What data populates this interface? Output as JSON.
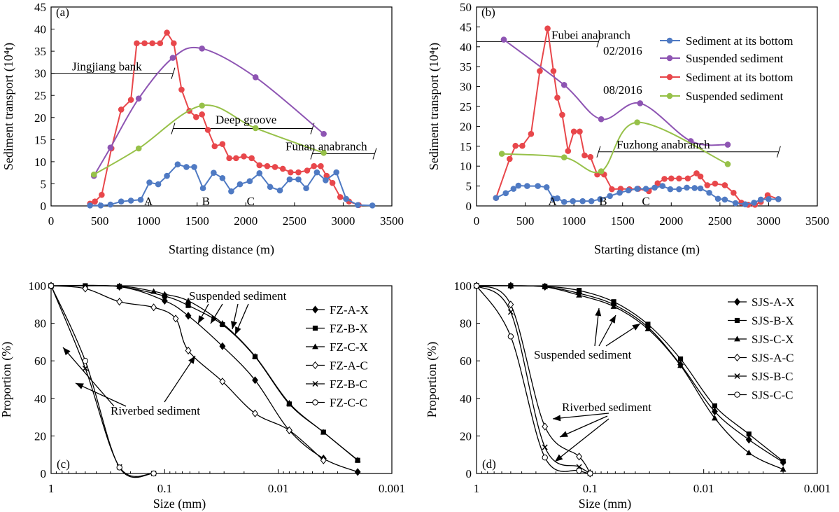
{
  "chart_data": [
    {
      "panel": "(a)",
      "type": "line",
      "xlabel": "Starting distance (m)",
      "ylabel": "Sediment transport (10⁴t)",
      "xlim": [
        0,
        3500
      ],
      "ylim": [
        0,
        45
      ],
      "xticks": [
        0,
        500,
        1000,
        1500,
        2000,
        2500,
        3000,
        3500
      ],
      "yticks": [
        0,
        5,
        10,
        15,
        20,
        25,
        30,
        35,
        40,
        45
      ],
      "series": [
        {
          "color": "#e8474b",
          "smooth": false,
          "x": [
            400,
            450,
            520,
            620,
            720,
            820,
            880,
            960,
            1040,
            1120,
            1190,
            1260,
            1340,
            1420,
            1490,
            1550,
            1610,
            1680,
            1760,
            1830,
            1900,
            1980,
            2060,
            2140,
            2220,
            2300,
            2380,
            2460,
            2540,
            2630,
            2700,
            2770,
            2830,
            2890,
            2970,
            3060,
            3160
          ],
          "y": [
            0.5,
            1,
            2.5,
            13,
            21.8,
            24,
            36.8,
            36.8,
            36.8,
            36.8,
            39.2,
            36.8,
            26.3,
            21.5,
            20.1,
            20.7,
            17.2,
            13.5,
            14,
            10.8,
            10.8,
            11.2,
            10.8,
            9.2,
            9,
            8.8,
            8.4,
            7.6,
            7.6,
            8,
            9,
            9,
            6.8,
            5.2,
            2,
            1,
            0.2
          ]
        },
        {
          "color": "#4f7ac3",
          "smooth": false,
          "x": [
            400,
            510,
            610,
            720,
            820,
            920,
            1010,
            1100,
            1190,
            1300,
            1390,
            1470,
            1560,
            1670,
            1760,
            1850,
            1940,
            2040,
            2140,
            2250,
            2350,
            2450,
            2540,
            2620,
            2730,
            2820,
            2930,
            3030,
            3150,
            3300
          ],
          "y": [
            0.1,
            0.1,
            0.3,
            1,
            1.2,
            1.4,
            5.3,
            4.9,
            6.8,
            9.4,
            8.8,
            8.8,
            4,
            7.5,
            6.3,
            3.3,
            4.9,
            5.6,
            7.4,
            4.3,
            3.5,
            6,
            6,
            4,
            7.6,
            5.8,
            7.6,
            1.6,
            0.2,
            0.1
          ]
        },
        {
          "color": "#8e55b3",
          "smooth": true,
          "x": [
            440,
            610,
            900,
            1250,
            1550,
            2100,
            2800
          ],
          "y": [
            6.8,
            13.2,
            24.3,
            33.5,
            35.6,
            29.1,
            16.3
          ]
        },
        {
          "color": "#97c149",
          "smooth": true,
          "x": [
            440,
            900,
            1550,
            2100,
            2800
          ],
          "y": [
            7.1,
            13,
            22.7,
            17.6,
            12
          ]
        }
      ],
      "annotations": [
        {
          "text": "Jingjiang bank",
          "x1": 0,
          "x2": 1250,
          "y": 30
        },
        {
          "text": "Deep groove",
          "x1": 1250,
          "x2": 2680,
          "y": 17.5
        },
        {
          "text": "Funan anabranch",
          "x1": 2680,
          "x2": 3320,
          "y": 11.8
        }
      ],
      "points": [
        {
          "text": "A",
          "x": 1000
        },
        {
          "text": "B",
          "x": 1590
        },
        {
          "text": "C",
          "x": 2050
        }
      ]
    },
    {
      "panel": "(b)",
      "type": "line",
      "xlabel": "Starting distance (m)",
      "ylabel": "Sediment transport (10⁴t)",
      "xlim": [
        0,
        3500
      ],
      "ylim": [
        0,
        50
      ],
      "xticks": [
        0,
        500,
        1000,
        1500,
        2000,
        2500,
        3000,
        3500
      ],
      "yticks": [
        0,
        5,
        10,
        15,
        20,
        25,
        30,
        35,
        40,
        45,
        50
      ],
      "series": [
        {
          "color": "#e8474b",
          "smooth": false,
          "x": [
            200,
            340,
            400,
            470,
            560,
            650,
            730,
            790,
            830,
            880,
            940,
            1000,
            1060,
            1110,
            1170,
            1240,
            1310,
            1390,
            1480,
            1570,
            1660,
            1770,
            1860,
            1930,
            2000,
            2080,
            2170,
            2260,
            2300,
            2370,
            2450,
            2550,
            2640,
            2720,
            2790,
            2860,
            2920,
            2990,
            3100
          ],
          "y": [
            2,
            11.8,
            15.1,
            15.1,
            18.1,
            33.9,
            44.6,
            33.9,
            27.2,
            22.9,
            13.8,
            18.7,
            18.7,
            12.7,
            12.3,
            7.9,
            7.9,
            4.2,
            4.3,
            4.2,
            4.3,
            3.7,
            5.7,
            6.8,
            6.9,
            6.9,
            6.9,
            8.2,
            7.4,
            5.2,
            5.6,
            5.2,
            3.3,
            0.8,
            0.3,
            0.3,
            1,
            2.7,
            1.7
          ]
        },
        {
          "color": "#4f7ac3",
          "smooth": false,
          "x": [
            200,
            300,
            380,
            430,
            520,
            630,
            720,
            790,
            830,
            900,
            990,
            1090,
            1180,
            1270,
            1370,
            1470,
            1560,
            1650,
            1740,
            1830,
            1910,
            1990,
            2080,
            2160,
            2240,
            2300,
            2390,
            2480,
            2550,
            2660,
            2760,
            2850,
            2920,
            3000,
            3100
          ],
          "y": [
            2,
            3.2,
            4.3,
            5.1,
            5,
            5,
            4.7,
            1.8,
            1.9,
            1,
            1.2,
            1.2,
            1.2,
            1.7,
            2.5,
            3.3,
            3.9,
            4.3,
            4.3,
            4.6,
            5,
            4.2,
            4.2,
            4.6,
            4.5,
            4.4,
            3.3,
            1.8,
            1.6,
            0.7,
            0.4,
            0.8,
            1.6,
            1.7,
            1.7
          ]
        },
        {
          "color": "#8e55b3",
          "smooth": true,
          "x": [
            280,
            900,
            1280,
            1680,
            2200,
            2580
          ],
          "y": [
            41.8,
            30.4,
            21.8,
            25.8,
            16.3,
            15.4
          ]
        },
        {
          "color": "#97c149",
          "smooth": true,
          "x": [
            260,
            900,
            1280,
            1650,
            2580
          ],
          "y": [
            13.1,
            12.2,
            8.7,
            21,
            10.5
          ]
        }
      ],
      "annotations": [
        {
          "text": "Fubei anabranch",
          "x1": 0,
          "x2": 1250,
          "y": 41.3
        },
        {
          "text": "Fuzhong anabranch",
          "x1": 1250,
          "x2": 3100,
          "y": 13.6
        }
      ],
      "points": [
        {
          "text": "A",
          "x": 780
        },
        {
          "text": "B",
          "x": 1300
        },
        {
          "text": "C",
          "x": 1740
        }
      ],
      "legend_groups": [
        "02/2016",
        "08/2016"
      ],
      "legend": [
        {
          "label": "Sediment at its bottom",
          "color": "#4f7ac3"
        },
        {
          "label": "Suspended sediment",
          "color": "#8e55b3"
        },
        {
          "label": "Sediment at its bottom",
          "color": "#e8474b"
        },
        {
          "label": "Suspended sediment",
          "color": "#97c149"
        }
      ]
    },
    {
      "panel": "(c)",
      "type": "line",
      "xscale": "log-reversed",
      "xlabel": "Size (mm)",
      "ylabel": "Proportion (%)",
      "xlim": [
        1,
        0.001
      ],
      "ylim": [
        0,
        100
      ],
      "xticks": [
        "1",
        "0.1",
        "0.01",
        "0.001"
      ],
      "yticks": [
        0,
        20,
        40,
        60,
        80,
        100
      ],
      "series": [
        {
          "name": "FZ-A-X",
          "marker": "diamond-filled",
          "x": [
            1,
            0.25,
            0.1,
            0.062,
            0.031,
            0.016,
            0.008,
            0.004,
            0.002
          ],
          "y": [
            100,
            99.5,
            92,
            84,
            67.8,
            49.7,
            23,
            8,
            0.8
          ]
        },
        {
          "name": "FZ-B-X",
          "marker": "square-filled",
          "x": [
            1,
            0.5,
            0.25,
            0.1,
            0.062,
            0.031,
            0.016,
            0.008,
            0.004,
            0.002
          ],
          "y": [
            100,
            100,
            99.6,
            94.5,
            89.5,
            79.3,
            62.2,
            37,
            22,
            7
          ]
        },
        {
          "name": "FZ-C-X",
          "marker": "triangle-filled",
          "x": [
            1,
            0.25,
            0.125,
            0.1,
            0.062,
            0.031,
            0.016,
            0.008,
            0.004,
            0.002
          ],
          "y": [
            100,
            99.8,
            97,
            95.5,
            92,
            80,
            62.5,
            37.5,
            22,
            7.2
          ]
        },
        {
          "name": "FZ-A-C",
          "marker": "diamond-open",
          "x": [
            1,
            0.5,
            0.25,
            0.125,
            0.08,
            0.062,
            0.031,
            0.016,
            0.008,
            0.004
          ],
          "y": [
            100,
            98.5,
            91.5,
            88.5,
            82.5,
            65.5,
            49,
            32,
            23,
            7
          ]
        },
        {
          "name": "FZ-B-C",
          "marker": "x",
          "x": [
            1,
            0.5,
            0.25,
            0.125
          ],
          "y": [
            100,
            56,
            3.5,
            0
          ]
        },
        {
          "name": "FZ-C-C",
          "marker": "circle-open",
          "x": [
            1,
            0.5,
            0.25,
            0.125
          ],
          "y": [
            100,
            60,
            3.2,
            0
          ]
        }
      ],
      "annotations": [
        "Suspended sediment",
        "Riverbed sediment"
      ],
      "legend_placement": "right"
    },
    {
      "panel": "(d)",
      "type": "line",
      "xscale": "log-reversed",
      "xlabel": "Size (mm)",
      "ylabel": "Proportion (%)",
      "xlim": [
        1,
        0.001
      ],
      "ylim": [
        0,
        100
      ],
      "xticks": [
        "1",
        "0.1",
        "0.01",
        "0.001"
      ],
      "yticks": [
        0,
        20,
        40,
        60,
        80,
        100
      ],
      "series": [
        {
          "name": "SJS-A-X",
          "marker": "diamond-filled",
          "x": [
            1,
            0.5,
            0.25,
            0.125,
            0.062,
            0.031,
            0.016,
            0.008,
            0.004,
            0.002
          ],
          "y": [
            100,
            100,
            99.5,
            96,
            90,
            78,
            58,
            33,
            18,
            6
          ]
        },
        {
          "name": "SJS-B-X",
          "marker": "square-filled",
          "x": [
            1,
            0.5,
            0.25,
            0.125,
            0.062,
            0.031,
            0.016,
            0.008,
            0.004,
            0.002
          ],
          "y": [
            100,
            100,
            99.7,
            97.5,
            91.5,
            79.5,
            61,
            36,
            21,
            6.5
          ]
        },
        {
          "name": "SJS-C-X",
          "marker": "triangle-filled",
          "x": [
            1,
            0.5,
            0.25,
            0.125,
            0.062,
            0.031,
            0.016,
            0.008,
            0.004,
            0.002
          ],
          "y": [
            100,
            100,
            99.4,
            95,
            89,
            77,
            57.5,
            29.5,
            11,
            2.2
          ]
        },
        {
          "name": "SJS-A-C",
          "marker": "diamond-open",
          "x": [
            1,
            0.5,
            0.25,
            0.125,
            0.1
          ],
          "y": [
            100,
            90,
            25,
            9,
            0
          ]
        },
        {
          "name": "SJS-B-C",
          "marker": "x",
          "x": [
            1,
            0.5,
            0.25,
            0.125,
            0.1
          ],
          "y": [
            100,
            86,
            14,
            3.5,
            0
          ]
        },
        {
          "name": "SJS-C-C",
          "marker": "circle-open",
          "x": [
            1,
            0.5,
            0.25,
            0.125,
            0.1
          ],
          "y": [
            100,
            73,
            8.5,
            1.5,
            0
          ]
        }
      ],
      "annotations": [
        "Suspended sediment",
        "Riverbed sediment"
      ],
      "legend_placement": "right"
    }
  ]
}
